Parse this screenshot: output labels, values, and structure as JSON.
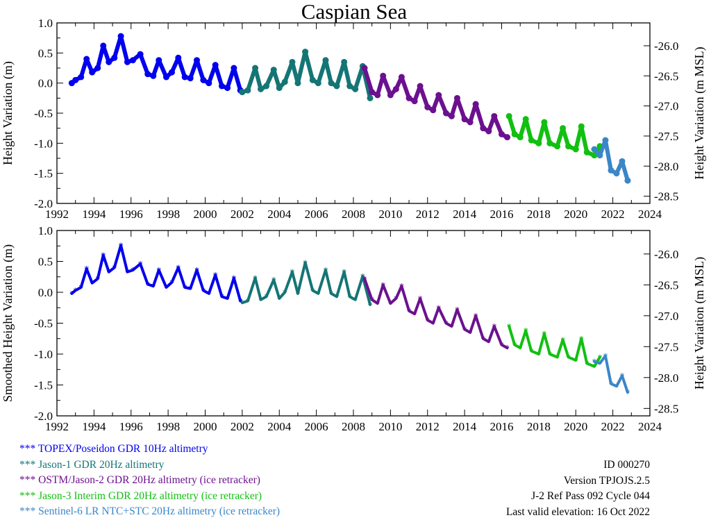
{
  "title": "Caspian Sea",
  "chart_data": [
    {
      "type": "scatter",
      "name": "raw",
      "ylabel": "Height Variation (m)",
      "ylabel_right": "Height Variation (m MSL)",
      "xlim": [
        1992,
        2024
      ],
      "ylim": [
        -2.0,
        1.0
      ],
      "ylim_right": [
        -28.62,
        -25.62
      ],
      "x_ticks": [
        "1992",
        "1994",
        "1996",
        "1998",
        "2000",
        "2002",
        "2004",
        "2006",
        "2008",
        "2010",
        "2012",
        "2014",
        "2016",
        "2018",
        "2020",
        "2022",
        "2024"
      ],
      "y_ticks": [
        "1.0",
        "0.5",
        "0.0",
        "-0.5",
        "-1.0",
        "-1.5",
        "-2.0"
      ],
      "y_ticks_right": [
        "-26.0",
        "-26.5",
        "-27.0",
        "-27.5",
        "-28.0",
        "-28.5"
      ],
      "marker": "circle",
      "series": [
        {
          "name": "TOPEX/Poseidon",
          "color": "#0000ee",
          "x": [
            1992.8,
            1993.0,
            1993.3,
            1993.6,
            1993.9,
            1994.2,
            1994.5,
            1994.8,
            1995.1,
            1995.45,
            1995.8,
            1996.1,
            1996.5,
            1996.9,
            1997.2,
            1997.5,
            1997.9,
            1998.2,
            1998.55,
            1998.9,
            1999.2,
            1999.55,
            1999.9,
            2000.2,
            2000.55,
            2000.9,
            2001.2,
            2001.55,
            2001.9
          ],
          "values": [
            0.0,
            0.05,
            0.1,
            0.4,
            0.18,
            0.25,
            0.62,
            0.35,
            0.42,
            0.78,
            0.35,
            0.38,
            0.48,
            0.15,
            0.12,
            0.38,
            0.1,
            0.18,
            0.42,
            0.1,
            0.08,
            0.38,
            0.05,
            0.0,
            0.3,
            -0.05,
            -0.08,
            0.25,
            -0.12
          ]
        },
        {
          "name": "Jason-1",
          "color": "#157575",
          "x": [
            2002.0,
            2002.3,
            2002.7,
            2003.0,
            2003.3,
            2003.7,
            2004.0,
            2004.3,
            2004.7,
            2005.0,
            2005.4,
            2005.8,
            2006.1,
            2006.5,
            2006.8,
            2007.1,
            2007.5,
            2007.8,
            2008.1,
            2008.5,
            2008.9
          ],
          "values": [
            -0.15,
            -0.12,
            0.25,
            -0.1,
            -0.05,
            0.22,
            -0.08,
            0.02,
            0.35,
            0.0,
            0.52,
            0.05,
            0.0,
            0.38,
            0.0,
            -0.05,
            0.35,
            -0.05,
            -0.1,
            0.28,
            -0.25
          ]
        },
        {
          "name": "OSTM/Jason-2",
          "color": "#6b118f",
          "x": [
            2008.6,
            2009.0,
            2009.3,
            2009.6,
            2010.0,
            2010.3,
            2010.6,
            2011.0,
            2011.3,
            2011.6,
            2012.0,
            2012.3,
            2012.6,
            2013.0,
            2013.3,
            2013.6,
            2014.0,
            2014.3,
            2014.6,
            2015.0,
            2015.3,
            2015.6,
            2016.0,
            2016.3
          ],
          "values": [
            0.25,
            -0.15,
            -0.2,
            0.12,
            -0.2,
            -0.1,
            0.1,
            -0.25,
            -0.3,
            -0.05,
            -0.4,
            -0.45,
            -0.2,
            -0.5,
            -0.55,
            -0.25,
            -0.6,
            -0.65,
            -0.35,
            -0.75,
            -0.8,
            -0.55,
            -0.85,
            -0.9
          ]
        },
        {
          "name": "Jason-3",
          "color": "#11c011",
          "x": [
            2016.4,
            2016.7,
            2017.0,
            2017.3,
            2017.6,
            2018.0,
            2018.3,
            2018.6,
            2019.0,
            2019.3,
            2019.6,
            2020.0,
            2020.3,
            2020.6,
            2021.0,
            2021.3
          ],
          "values": [
            -0.55,
            -0.85,
            -0.9,
            -0.6,
            -0.95,
            -1.0,
            -0.65,
            -1.0,
            -1.05,
            -0.75,
            -1.05,
            -1.1,
            -0.72,
            -1.15,
            -1.2,
            -1.05
          ]
        },
        {
          "name": "Sentinel-6",
          "color": "#3a86c8",
          "x": [
            2021.0,
            2021.3,
            2021.6,
            2021.9,
            2022.2,
            2022.5,
            2022.8
          ],
          "values": [
            -1.1,
            -1.2,
            -0.95,
            -1.45,
            -1.5,
            -1.3,
            -1.62
          ]
        }
      ]
    },
    {
      "type": "scatter",
      "name": "smoothed",
      "ylabel": "Smoothed Height Variation (m)",
      "ylabel_right": "Height Variation (m MSL)",
      "xlim": [
        1992,
        2024
      ],
      "ylim": [
        -2.0,
        1.0
      ],
      "ylim_right": [
        -28.62,
        -25.62
      ],
      "x_ticks": [
        "1992",
        "1994",
        "1996",
        "1998",
        "2000",
        "2002",
        "2004",
        "2006",
        "2008",
        "2010",
        "2012",
        "2014",
        "2016",
        "2018",
        "2020",
        "2022",
        "2024"
      ],
      "y_ticks": [
        "1.0",
        "0.5",
        "0.0",
        "-0.5",
        "-1.0",
        "-1.5",
        "-2.0"
      ],
      "y_ticks_right": [
        "-26.0",
        "-26.5",
        "-27.0",
        "-27.5",
        "-28.0",
        "-28.5"
      ],
      "marker": "star",
      "series": [
        {
          "name": "TOPEX/Poseidon",
          "color": "#0000ee",
          "x": [
            1992.8,
            1993.0,
            1993.3,
            1993.6,
            1993.9,
            1994.2,
            1994.5,
            1994.8,
            1995.1,
            1995.45,
            1995.8,
            1996.1,
            1996.5,
            1996.9,
            1997.2,
            1997.5,
            1997.9,
            1998.2,
            1998.55,
            1998.9,
            1999.2,
            1999.55,
            1999.9,
            2000.2,
            2000.55,
            2000.9,
            2001.2,
            2001.55,
            2001.9
          ],
          "values": [
            -0.02,
            0.03,
            0.08,
            0.38,
            0.15,
            0.22,
            0.6,
            0.33,
            0.4,
            0.76,
            0.33,
            0.36,
            0.46,
            0.13,
            0.1,
            0.36,
            0.08,
            0.16,
            0.4,
            0.08,
            0.06,
            0.36,
            0.03,
            -0.02,
            0.28,
            -0.07,
            -0.1,
            0.23,
            -0.14
          ]
        },
        {
          "name": "Jason-1",
          "color": "#157575",
          "x": [
            2002.0,
            2002.3,
            2002.7,
            2003.0,
            2003.3,
            2003.7,
            2004.0,
            2004.3,
            2004.7,
            2005.0,
            2005.4,
            2005.8,
            2006.1,
            2006.5,
            2006.8,
            2007.1,
            2007.5,
            2007.8,
            2008.1,
            2008.5,
            2008.9
          ],
          "values": [
            -0.17,
            -0.14,
            0.23,
            -0.12,
            -0.07,
            0.2,
            -0.1,
            0.0,
            0.33,
            -0.02,
            0.48,
            0.03,
            -0.02,
            0.36,
            -0.02,
            -0.07,
            0.33,
            -0.07,
            -0.12,
            0.26,
            -0.2
          ]
        },
        {
          "name": "OSTM/Jason-2",
          "color": "#6b118f",
          "x": [
            2008.6,
            2009.0,
            2009.3,
            2009.6,
            2010.0,
            2010.3,
            2010.6,
            2011.0,
            2011.3,
            2011.6,
            2012.0,
            2012.3,
            2012.6,
            2013.0,
            2013.3,
            2013.6,
            2014.0,
            2014.3,
            2014.6,
            2015.0,
            2015.3,
            2015.6,
            2016.0,
            2016.3
          ],
          "values": [
            0.22,
            -0.12,
            -0.18,
            0.12,
            -0.18,
            -0.1,
            0.1,
            -0.3,
            -0.35,
            -0.1,
            -0.45,
            -0.5,
            -0.25,
            -0.5,
            -0.55,
            -0.28,
            -0.6,
            -0.65,
            -0.38,
            -0.75,
            -0.8,
            -0.55,
            -0.85,
            -0.9
          ]
        },
        {
          "name": "Jason-3",
          "color": "#11c011",
          "x": [
            2016.4,
            2016.7,
            2017.0,
            2017.3,
            2017.6,
            2018.0,
            2018.3,
            2018.6,
            2019.0,
            2019.3,
            2019.6,
            2020.0,
            2020.3,
            2020.6,
            2021.0,
            2021.3
          ],
          "values": [
            -0.55,
            -0.85,
            -0.9,
            -0.62,
            -0.95,
            -1.0,
            -0.67,
            -1.0,
            -1.05,
            -0.77,
            -1.05,
            -1.1,
            -0.75,
            -1.15,
            -1.2,
            -1.05
          ]
        },
        {
          "name": "Sentinel-6",
          "color": "#3a86c8",
          "x": [
            2021.0,
            2021.3,
            2021.6,
            2021.9,
            2022.2,
            2022.5,
            2022.8
          ],
          "values": [
            -1.12,
            -1.15,
            -1.03,
            -1.48,
            -1.52,
            -1.35,
            -1.62
          ]
        }
      ]
    }
  ],
  "legend": [
    {
      "label": "*** TOPEX/Poseidon GDR 10Hz altimetry",
      "color": "#0000ee"
    },
    {
      "label": "*** Jason-1 GDR 20Hz altimetry",
      "color": "#157575"
    },
    {
      "label": "*** OSTM/Jason-2 GDR 20Hz altimetry (ice retracker)",
      "color": "#6b118f"
    },
    {
      "label": "*** Jason-3 Interim GDR 20Hz altimetry (ice retracker)",
      "color": "#11c011"
    },
    {
      "label": "*** Sentinel-6 LR NTC+STC 20Hz altimetry (ice retracker)",
      "color": "#3a86c8"
    }
  ],
  "info": {
    "id": "ID 000270",
    "version": "Version TPJOJS.2.5",
    "pass": "J-2 Ref Pass 092 Cycle 044",
    "last_valid": "Last valid elevation: 16 Oct 2022"
  }
}
